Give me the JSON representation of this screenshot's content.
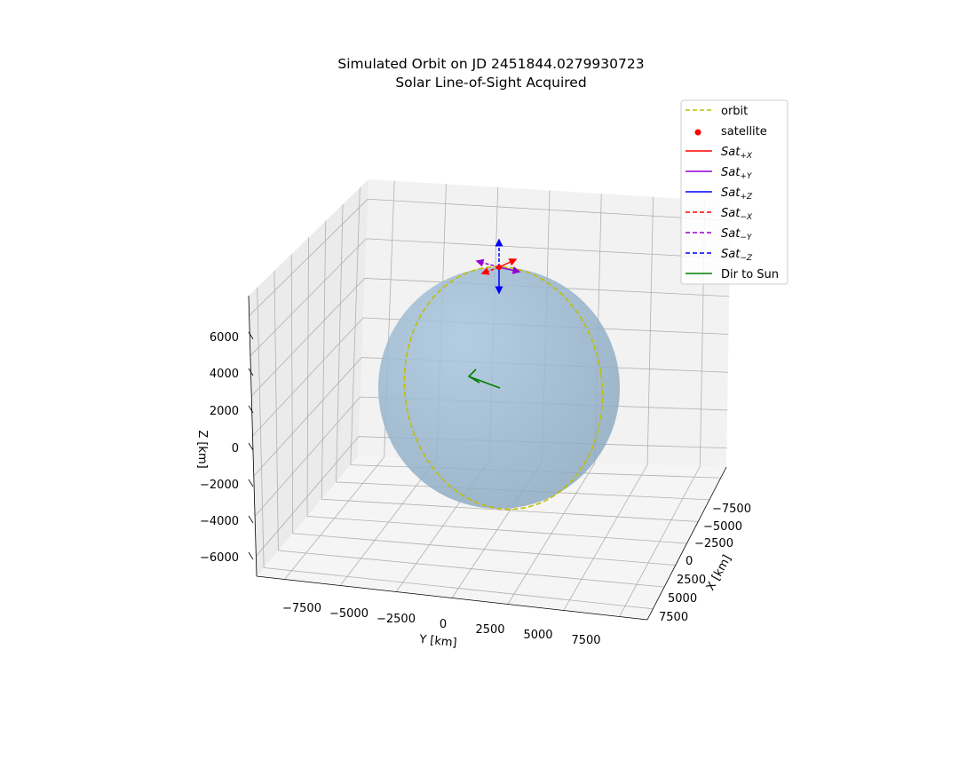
{
  "chart_data": {
    "type": "3d-line",
    "title_line1": "Simulated Orbit on JD 2451844.0279930723",
    "title_line2": "Solar Line-of-Sight Acquired",
    "xlabel": "X [km]",
    "ylabel": "Y [km]",
    "zlabel": "Z [km]",
    "x_ticks": [
      "−7500",
      "−5000",
      "−2500",
      "0",
      "2500",
      "5000",
      "7500"
    ],
    "y_ticks": [
      "−7500",
      "−5000",
      "−2500",
      "0",
      "2500",
      "5000",
      "7500"
    ],
    "z_ticks": [
      "6000",
      "4000",
      "2000",
      "0",
      "−2000",
      "−4000",
      "−6000"
    ],
    "earth_radius_km": 6378,
    "grid": true,
    "legend_position": "upper right",
    "legend": [
      {
        "label": "orbit",
        "sub": "",
        "style": "dashed",
        "color": "#bfbf00",
        "marker": "line"
      },
      {
        "label": "satellite",
        "sub": "",
        "style": "point",
        "color": "#ff0000",
        "marker": "dot"
      },
      {
        "label": "Sat",
        "sub": "+X",
        "style": "solid",
        "color": "#ff0000",
        "marker": "line"
      },
      {
        "label": "Sat",
        "sub": "+Y",
        "style": "solid",
        "color": "#9400d3",
        "marker": "line"
      },
      {
        "label": "Sat",
        "sub": "+Z",
        "style": "solid",
        "color": "#0000ff",
        "marker": "line"
      },
      {
        "label": "Sat",
        "sub": "−X",
        "style": "dashed",
        "color": "#ff0000",
        "marker": "line"
      },
      {
        "label": "Sat",
        "sub": "−Y",
        "style": "dashed",
        "color": "#9400d3",
        "marker": "line"
      },
      {
        "label": "Sat",
        "sub": "−Z",
        "style": "dashed",
        "color": "#0000ff",
        "marker": "line"
      },
      {
        "label": "Dir to Sun",
        "sub": "",
        "style": "solid",
        "color": "#008000",
        "marker": "line"
      }
    ],
    "colors": {
      "earth": "#8fb2cf",
      "pane": "#f2f2f2",
      "grid": "#b0b0b0",
      "sun_arrow": "#008000"
    }
  }
}
